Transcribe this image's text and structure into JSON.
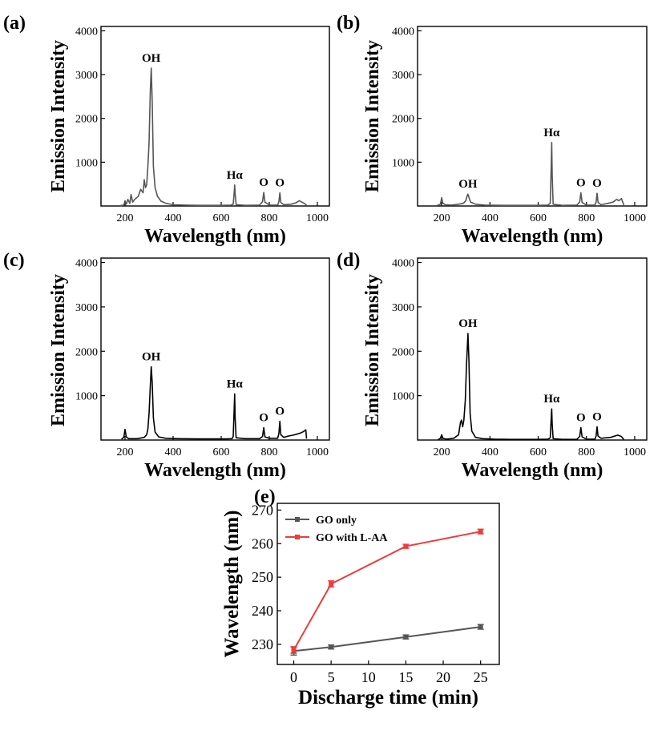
{
  "chart_data": [
    {
      "panel": "(a)",
      "type": "line",
      "xlabel": "Wavelength (nm)",
      "ylabel": "Emission Intensity",
      "xlim": [
        100,
        1050
      ],
      "ylim": [
        0,
        4100
      ],
      "xticks": [
        200,
        400,
        600,
        800,
        1000
      ],
      "yticks": [
        1000,
        2000,
        3000,
        4000
      ],
      "color": "#555555",
      "peaks": [
        {
          "label": "OH",
          "x": 309,
          "y": 3150
        },
        {
          "label": "Hα",
          "x": 656,
          "y": 480
        },
        {
          "label": "O",
          "x": 777,
          "y": 310
        },
        {
          "label": "O",
          "x": 844,
          "y": 300
        }
      ],
      "series": [
        {
          "name": "spectrum",
          "x": [
            180,
            195,
            200,
            205,
            212,
            220,
            225,
            232,
            240,
            255,
            265,
            275,
            280,
            285,
            290,
            295,
            300,
            305,
            309,
            313,
            318,
            325,
            335,
            350,
            370,
            400,
            450,
            500,
            550,
            600,
            640,
            650,
            654,
            656,
            658,
            662,
            700,
            760,
            772,
            777,
            782,
            800,
            835,
            840,
            844,
            848,
            860,
            890,
            910,
            925,
            935,
            945,
            955
          ],
          "y": [
            10,
            20,
            120,
            40,
            150,
            60,
            260,
            90,
            150,
            220,
            380,
            300,
            600,
            420,
            480,
            900,
            1450,
            2600,
            3150,
            2400,
            900,
            420,
            220,
            110,
            60,
            30,
            20,
            15,
            15,
            15,
            20,
            40,
            300,
            480,
            280,
            30,
            15,
            20,
            100,
            310,
            90,
            20,
            20,
            100,
            300,
            80,
            30,
            40,
            70,
            120,
            90,
            60,
            20
          ]
        }
      ]
    },
    {
      "panel": "(b)",
      "type": "line",
      "xlabel": "Wavelength (nm)",
      "ylabel": "Emission Intensity",
      "xlim": [
        100,
        1050
      ],
      "ylim": [
        0,
        4100
      ],
      "xticks": [
        200,
        400,
        600,
        800,
        1000
      ],
      "yticks": [
        1000,
        2000,
        3000,
        4000
      ],
      "color": "#555555",
      "peaks": [
        {
          "label": "OH",
          "x": 309,
          "y": 270
        },
        {
          "label": "Hα",
          "x": 656,
          "y": 1450
        },
        {
          "label": "O",
          "x": 777,
          "y": 300
        },
        {
          "label": "O",
          "x": 844,
          "y": 290
        }
      ],
      "series": [
        {
          "name": "spectrum",
          "x": [
            180,
            195,
            200,
            205,
            215,
            240,
            270,
            290,
            300,
            305,
            309,
            313,
            320,
            340,
            380,
            450,
            500,
            550,
            600,
            640,
            650,
            654,
            656,
            658,
            662,
            700,
            760,
            772,
            777,
            782,
            800,
            835,
            840,
            844,
            848,
            860,
            890,
            910,
            925,
            935,
            945,
            955
          ],
          "y": [
            10,
            40,
            190,
            60,
            30,
            20,
            40,
            60,
            120,
            220,
            270,
            200,
            90,
            40,
            20,
            15,
            15,
            15,
            15,
            20,
            60,
            900,
            1450,
            700,
            40,
            15,
            20,
            90,
            300,
            80,
            20,
            20,
            90,
            290,
            80,
            30,
            60,
            90,
            150,
            120,
            170,
            20
          ]
        }
      ]
    },
    {
      "panel": "(c)",
      "type": "line",
      "xlabel": "Wavelength (nm)",
      "ylabel": "Emission Intensity",
      "xlim": [
        100,
        1050
      ],
      "ylim": [
        0,
        4100
      ],
      "xticks": [
        200,
        400,
        600,
        800,
        1000
      ],
      "yticks": [
        1000,
        2000,
        3000,
        4000
      ],
      "color": "#000000",
      "peaks": [
        {
          "label": "OH",
          "x": 309,
          "y": 1650
        },
        {
          "label": "Hα",
          "x": 656,
          "y": 1040
        },
        {
          "label": "O",
          "x": 777,
          "y": 280
        },
        {
          "label": "O",
          "x": 844,
          "y": 420
        }
      ],
      "series": [
        {
          "name": "spectrum",
          "x": [
            185,
            195,
            200,
            205,
            215,
            250,
            280,
            290,
            295,
            300,
            305,
            309,
            313,
            318,
            325,
            340,
            370,
            420,
            500,
            560,
            620,
            645,
            650,
            654,
            656,
            658,
            662,
            700,
            760,
            772,
            777,
            782,
            800,
            835,
            840,
            844,
            848,
            860,
            880,
            900,
            920,
            935,
            945,
            952,
            955
          ],
          "y": [
            20,
            60,
            240,
            70,
            30,
            30,
            60,
            120,
            250,
            600,
            1200,
            1650,
            1300,
            500,
            180,
            70,
            40,
            30,
            25,
            25,
            25,
            30,
            80,
            700,
            1040,
            500,
            50,
            30,
            30,
            80,
            280,
            70,
            40,
            40,
            150,
            420,
            120,
            60,
            90,
            110,
            140,
            170,
            200,
            230,
            30
          ]
        }
      ]
    },
    {
      "panel": "(d)",
      "type": "line",
      "xlabel": "Wavelength (nm)",
      "ylabel": "Emission Intensity",
      "xlim": [
        100,
        1050
      ],
      "ylim": [
        0,
        4100
      ],
      "xticks": [
        200,
        400,
        600,
        800,
        1000
      ],
      "yticks": [
        1000,
        2000,
        3000,
        4000
      ],
      "color": "#000000",
      "peaks": [
        {
          "label": "OH",
          "x": 309,
          "y": 2400
        },
        {
          "label": "Hα",
          "x": 656,
          "y": 700
        },
        {
          "label": "O",
          "x": 777,
          "y": 280
        },
        {
          "label": "O",
          "x": 844,
          "y": 300
        }
      ],
      "series": [
        {
          "name": "spectrum",
          "x": [
            185,
            195,
            200,
            205,
            220,
            250,
            270,
            278,
            282,
            287,
            292,
            298,
            303,
            309,
            313,
            318,
            325,
            340,
            370,
            420,
            500,
            600,
            640,
            650,
            654,
            656,
            658,
            662,
            700,
            760,
            772,
            777,
            782,
            800,
            835,
            840,
            844,
            848,
            860,
            900,
            930,
            945,
            955
          ],
          "y": [
            10,
            40,
            120,
            40,
            20,
            40,
            120,
            400,
            450,
            300,
            450,
            900,
            1700,
            2400,
            1800,
            600,
            200,
            60,
            30,
            20,
            15,
            15,
            20,
            50,
            500,
            700,
            350,
            30,
            15,
            15,
            80,
            280,
            70,
            20,
            20,
            90,
            300,
            90,
            40,
            60,
            110,
            80,
            10
          ]
        }
      ]
    },
    {
      "panel": "(e)",
      "type": "line",
      "xlabel": "Discharge time (min)",
      "ylabel": "Wavelength (nm)",
      "xlim": [
        -2.2,
        27.5
      ],
      "ylim": [
        224,
        272
      ],
      "xticks": [
        0,
        5,
        10,
        15,
        20,
        25
      ],
      "yticks": [
        230,
        240,
        250,
        260,
        270
      ],
      "x": [
        0,
        5,
        15,
        25
      ],
      "series": [
        {
          "name": "GO only",
          "values": [
            228.0,
            229.2,
            232.2,
            235.2
          ],
          "errors": [
            1.2,
            0.6,
            0.6,
            0.7
          ],
          "color": "#555555"
        },
        {
          "name": "GO with L-AA",
          "values": [
            228.3,
            248.0,
            259.2,
            263.6
          ],
          "errors": [
            1.0,
            0.9,
            0.6,
            0.7
          ],
          "color": "#ee3b3b"
        }
      ],
      "legend": "top-left"
    }
  ]
}
